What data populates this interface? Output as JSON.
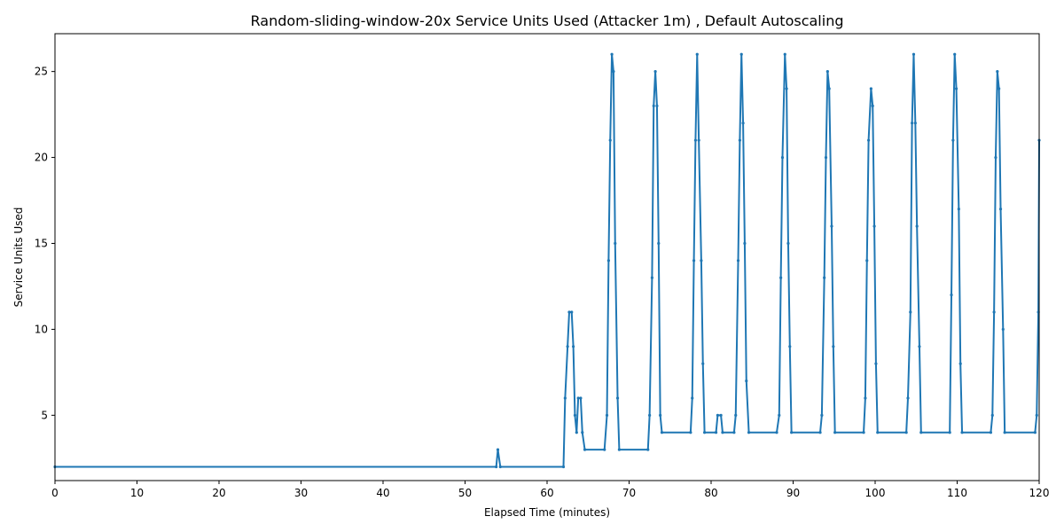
{
  "chart_data": {
    "type": "line",
    "title": "Random-sliding-window-20x Service Units Used (Attacker 1m) , Default Autoscaling",
    "xlabel": "Elapsed Time (minutes)",
    "ylabel": "Service Units Used",
    "xlim": [
      0,
      120
    ],
    "ylim": [
      1.2,
      27.2
    ],
    "xticks": [
      0,
      10,
      20,
      30,
      40,
      50,
      60,
      70,
      80,
      90,
      100,
      110,
      120
    ],
    "yticks": [
      5,
      10,
      15,
      20,
      25
    ],
    "grid": false,
    "line_color": "#1f77b4",
    "series": [
      {
        "values": [
          [
            0,
            2
          ],
          [
            53.8,
            2
          ],
          [
            54.0,
            3
          ],
          [
            54.3,
            2
          ],
          [
            62.0,
            2
          ],
          [
            62.2,
            6
          ],
          [
            62.5,
            9
          ],
          [
            62.7,
            11
          ],
          [
            63.0,
            11
          ],
          [
            63.2,
            9
          ],
          [
            63.4,
            5
          ],
          [
            63.6,
            4
          ],
          [
            63.8,
            6
          ],
          [
            64.1,
            6
          ],
          [
            64.3,
            4
          ],
          [
            64.6,
            3
          ],
          [
            67.0,
            3
          ],
          [
            67.3,
            5
          ],
          [
            67.5,
            14
          ],
          [
            67.7,
            21
          ],
          [
            67.9,
            26
          ],
          [
            68.1,
            25
          ],
          [
            68.3,
            15
          ],
          [
            68.6,
            6
          ],
          [
            68.8,
            3
          ],
          [
            72.3,
            3
          ],
          [
            72.5,
            5
          ],
          [
            72.8,
            13
          ],
          [
            73.0,
            23
          ],
          [
            73.2,
            25
          ],
          [
            73.4,
            23
          ],
          [
            73.6,
            15
          ],
          [
            73.8,
            5
          ],
          [
            74.0,
            4
          ],
          [
            77.5,
            4
          ],
          [
            77.7,
            6
          ],
          [
            77.9,
            14
          ],
          [
            78.1,
            21
          ],
          [
            78.3,
            26
          ],
          [
            78.5,
            21
          ],
          [
            78.8,
            14
          ],
          [
            79.0,
            8
          ],
          [
            79.2,
            4
          ],
          [
            80.6,
            4
          ],
          [
            80.8,
            5
          ],
          [
            81.2,
            5
          ],
          [
            81.4,
            4
          ],
          [
            82.8,
            4
          ],
          [
            83.0,
            5
          ],
          [
            83.3,
            14
          ],
          [
            83.5,
            21
          ],
          [
            83.7,
            26
          ],
          [
            83.9,
            22
          ],
          [
            84.1,
            15
          ],
          [
            84.3,
            7
          ],
          [
            84.6,
            4
          ],
          [
            88.0,
            4
          ],
          [
            88.3,
            5
          ],
          [
            88.5,
            13
          ],
          [
            88.7,
            20
          ],
          [
            89.0,
            26
          ],
          [
            89.2,
            24
          ],
          [
            89.4,
            15
          ],
          [
            89.6,
            9
          ],
          [
            89.8,
            4
          ],
          [
            93.3,
            4
          ],
          [
            93.5,
            5
          ],
          [
            93.8,
            13
          ],
          [
            94.0,
            20
          ],
          [
            94.2,
            25
          ],
          [
            94.4,
            24
          ],
          [
            94.7,
            16
          ],
          [
            94.9,
            9
          ],
          [
            95.1,
            4
          ],
          [
            98.6,
            4
          ],
          [
            98.8,
            6
          ],
          [
            99.0,
            14
          ],
          [
            99.2,
            21
          ],
          [
            99.5,
            24
          ],
          [
            99.7,
            23
          ],
          [
            99.9,
            16
          ],
          [
            100.1,
            8
          ],
          [
            100.3,
            4
          ],
          [
            103.8,
            4
          ],
          [
            104.0,
            6
          ],
          [
            104.3,
            11
          ],
          [
            104.5,
            22
          ],
          [
            104.7,
            26
          ],
          [
            104.9,
            22
          ],
          [
            105.1,
            16
          ],
          [
            105.4,
            9
          ],
          [
            105.6,
            4
          ],
          [
            109.1,
            4
          ],
          [
            109.3,
            12
          ],
          [
            109.5,
            21
          ],
          [
            109.7,
            26
          ],
          [
            109.9,
            24
          ],
          [
            110.2,
            17
          ],
          [
            110.4,
            8
          ],
          [
            110.6,
            4
          ],
          [
            114.1,
            4
          ],
          [
            114.3,
            5
          ],
          [
            114.5,
            11
          ],
          [
            114.7,
            20
          ],
          [
            114.9,
            25
          ],
          [
            115.1,
            24
          ],
          [
            115.3,
            17
          ],
          [
            115.6,
            10
          ],
          [
            115.8,
            4
          ],
          [
            119.5,
            4
          ],
          [
            119.7,
            5
          ],
          [
            119.9,
            11
          ],
          [
            120.0,
            21
          ]
        ]
      }
    ]
  }
}
